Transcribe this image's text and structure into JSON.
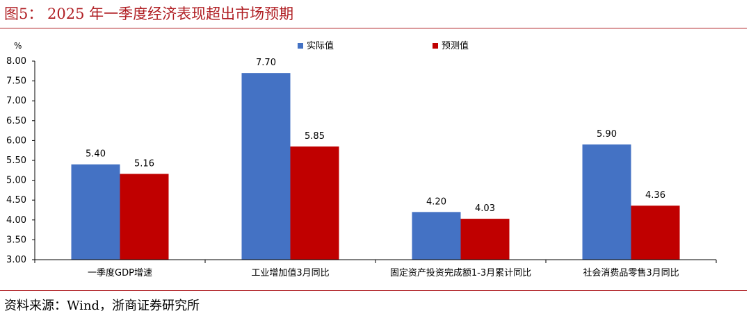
{
  "figure": {
    "title": "图5：  2025 年一季度经济表现超出市场预期",
    "source": "资料来源：Wind，浙商证券研究所"
  },
  "chart_data": {
    "type": "bar",
    "unit_label": "%",
    "categories": [
      "一季度GDP增速",
      "工业增加值3月同比",
      "固定资产投资完成额1-3月累计同比",
      "社会消费品零售3月同比"
    ],
    "series": [
      {
        "name": "实际值",
        "color": "#4472c4",
        "values": [
          5.4,
          7.7,
          4.2,
          5.9
        ],
        "labels": [
          "5.40",
          "7.70",
          "4.20",
          "5.90"
        ]
      },
      {
        "name": "预测值",
        "color": "#c00000",
        "values": [
          5.16,
          5.85,
          4.03,
          4.36
        ],
        "labels": [
          "5.16",
          "5.85",
          "4.03",
          "4.36"
        ]
      }
    ],
    "ylim": [
      3.0,
      8.0
    ],
    "yticks": [
      "3.00",
      "3.50",
      "4.00",
      "4.50",
      "5.00",
      "5.50",
      "6.00",
      "6.50",
      "7.00",
      "7.50",
      "8.00"
    ],
    "grid": false,
    "legend_position": "top"
  }
}
